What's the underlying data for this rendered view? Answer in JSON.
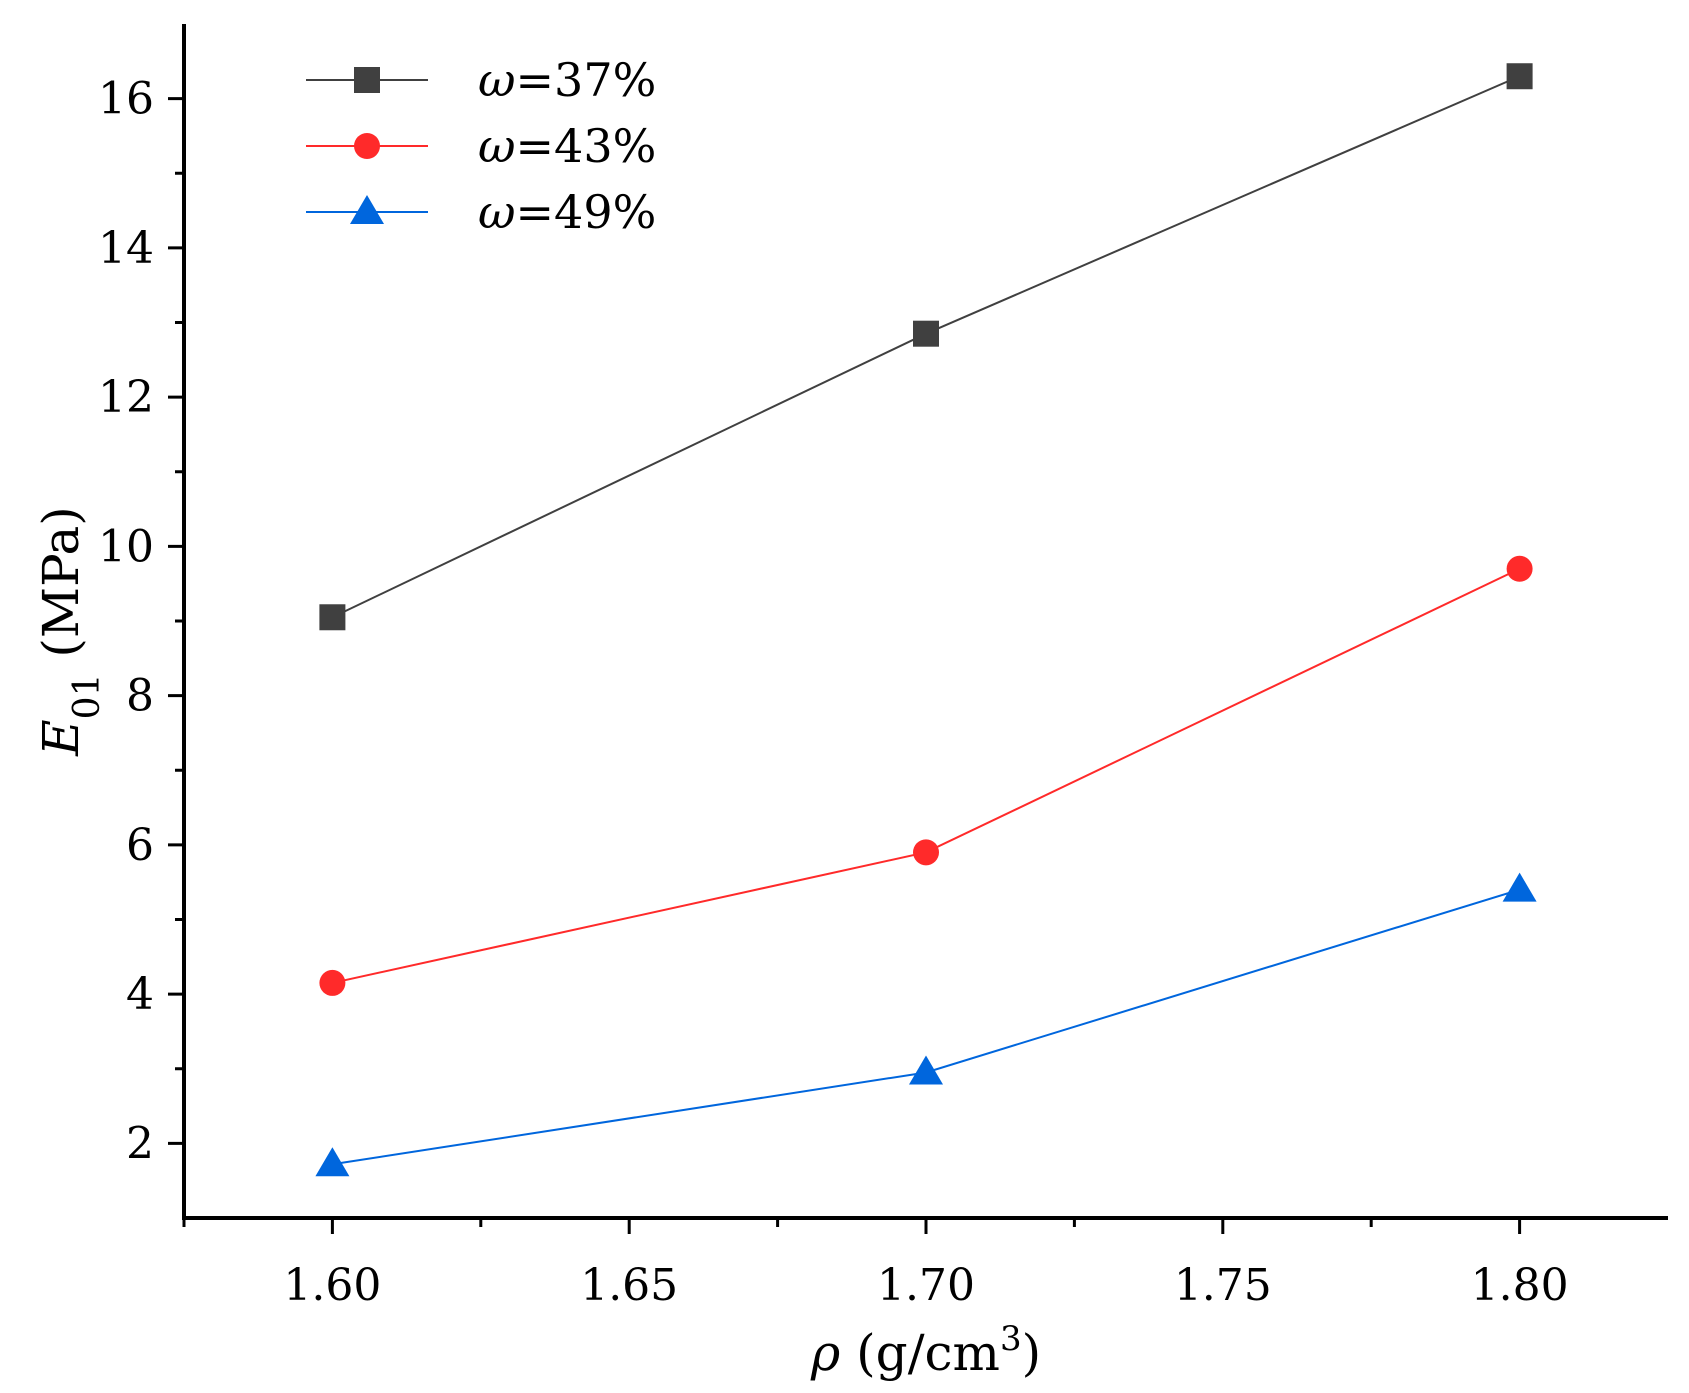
{
  "chart_data": {
    "type": "line",
    "x": [
      1.6,
      1.7,
      1.8
    ],
    "series": [
      {
        "name": "ω=37%",
        "legend_symbol": "ω",
        "legend_text": "=37%",
        "color": "#404040",
        "marker": "square",
        "values": [
          9.05,
          12.85,
          16.3
        ]
      },
      {
        "name": "ω=43%",
        "legend_symbol": "ω",
        "legend_text": "=43%",
        "color": "#ff2a2a",
        "marker": "circle",
        "values": [
          4.15,
          5.9,
          9.7
        ]
      },
      {
        "name": "ω=49%",
        "legend_symbol": "ω",
        "legend_text": "=49%",
        "color": "#0066dd",
        "marker": "triangle",
        "values": [
          1.72,
          2.95,
          5.4
        ]
      }
    ],
    "xlim": [
      1.575,
      1.825
    ],
    "ylim": [
      1.0,
      17.0
    ],
    "xticks": [
      1.6,
      1.65,
      1.7,
      1.75,
      1.8
    ],
    "xtick_labels": [
      "1.60",
      "1.65",
      "1.70",
      "1.75",
      "1.80"
    ],
    "yticks": [
      2,
      4,
      6,
      8,
      10,
      12,
      14,
      16
    ],
    "ytick_labels": [
      "2",
      "4",
      "6",
      "8",
      "10",
      "12",
      "14",
      "16"
    ],
    "xlabel": {
      "symbol": "ρ",
      "open": " (g/cm",
      "sup": "3",
      "close": ")"
    },
    "ylabel": {
      "symbol": "E",
      "sub": "01",
      "unit": " (MPa)"
    },
    "grid": false,
    "legend_position": "top-left"
  }
}
